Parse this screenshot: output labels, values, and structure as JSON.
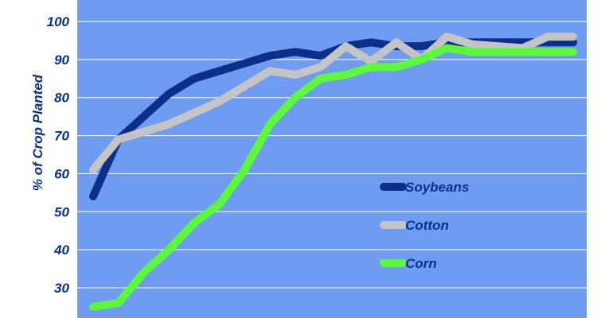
{
  "chart_data": {
    "type": "line",
    "title": "",
    "ylabel": "% of Crop Planted",
    "xlabel": "",
    "ylim": [
      25,
      100
    ],
    "yticks": [
      30,
      40,
      50,
      60,
      70,
      80,
      90,
      100
    ],
    "grid": true,
    "legend_position": "center-right",
    "x": [
      1,
      2,
      3,
      4,
      5,
      6,
      7,
      8,
      9,
      10,
      11,
      12,
      13,
      14,
      15,
      16,
      17,
      18,
      19,
      20
    ],
    "series": [
      {
        "name": "Soybeans",
        "color": "#0d2f8c",
        "values": [
          54,
          69,
          75,
          81,
          85,
          87,
          89,
          91,
          92,
          91,
          93.5,
          94.5,
          93.5,
          93.5,
          94.5,
          94.5,
          94.5,
          94.5,
          94.5,
          94.5
        ]
      },
      {
        "name": "Cotton",
        "color": "#c4c4c4",
        "values": [
          61,
          69,
          71,
          73,
          76,
          79,
          83,
          87,
          86,
          88,
          93.5,
          89.5,
          94.5,
          90,
          96,
          94,
          93.5,
          93,
          96,
          96
        ]
      },
      {
        "name": "Corn",
        "color": "#5cf83a",
        "values": [
          25,
          26,
          34,
          40,
          47,
          52,
          61,
          73,
          80,
          85,
          86,
          88,
          88,
          90,
          93,
          92,
          92,
          92,
          92,
          92
        ]
      }
    ]
  },
  "colors": {
    "plot_background": "#6f9cf1",
    "grid": "#ffffff",
    "text": "#0d2f8c"
  }
}
